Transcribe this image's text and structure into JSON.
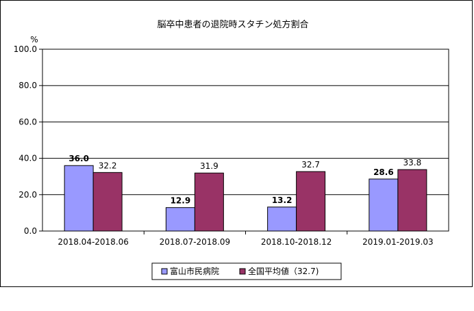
{
  "chart_data": {
    "type": "bar",
    "title": "脳卒中患者の退院時スタチン処方割合",
    "ylabel": "%",
    "ylim": [
      0,
      100
    ],
    "yticks": [
      "0.0",
      "20.0",
      "40.0",
      "60.0",
      "80.0",
      "100.0"
    ],
    "categories": [
      "2018.04-2018.06",
      "2018.07-2018.09",
      "2018.10-2018.12",
      "2019.01-2019.03"
    ],
    "series": [
      {
        "name": "富山市民病院",
        "values": [
          36.0,
          12.9,
          13.2,
          28.6
        ],
        "labels": [
          "36.0",
          "12.9",
          "13.2",
          "28.6"
        ],
        "color": "#9999ff"
      },
      {
        "name": "全国平均値（32.7)",
        "values": [
          32.2,
          31.9,
          32.7,
          33.8
        ],
        "labels": [
          "32.2",
          "31.9",
          "32.7",
          "33.8"
        ],
        "color": "#993366"
      }
    ],
    "grid": true,
    "legend_position": "bottom"
  }
}
